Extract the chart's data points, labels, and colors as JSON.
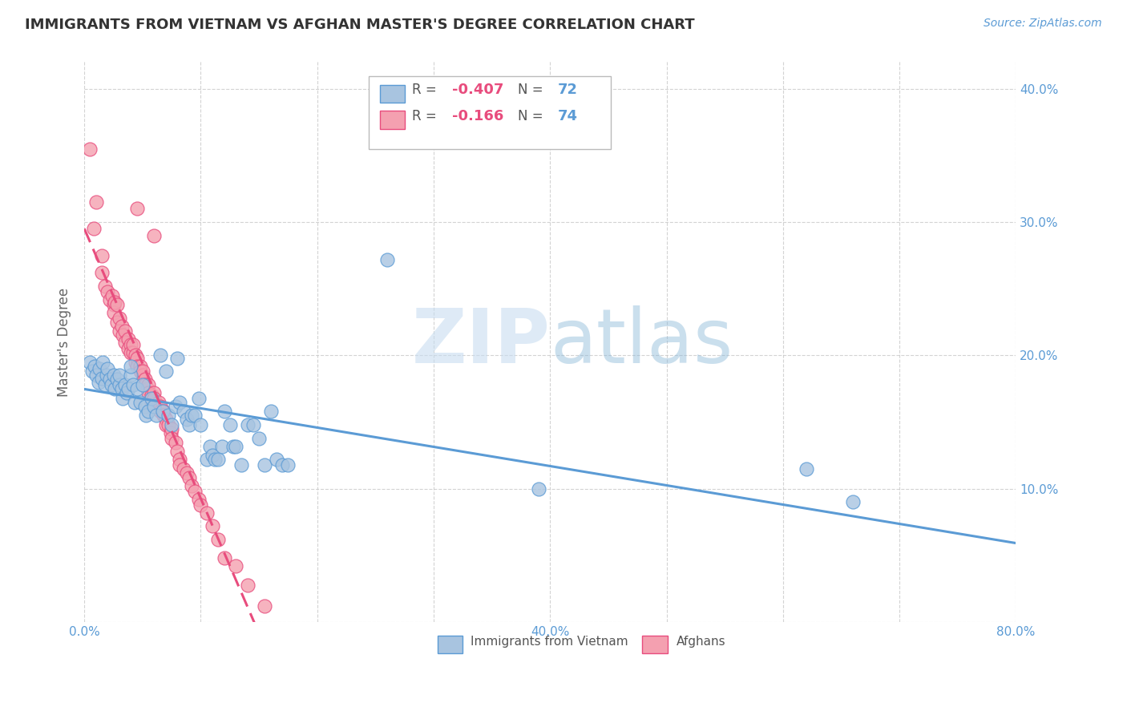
{
  "title": "IMMIGRANTS FROM VIETNAM VS AFGHAN MASTER'S DEGREE CORRELATION CHART",
  "source": "Source: ZipAtlas.com",
  "ylabel": "Master's Degree",
  "watermark": "ZIPatlas",
  "legend_vietnam_R": "-0.407",
  "legend_vietnam_N": "72",
  "legend_afghan_R": "-0.166",
  "legend_afghan_N": "74",
  "xmin": 0.0,
  "xmax": 0.8,
  "ymin": 0.0,
  "ymax": 0.42,
  "right_ytick_labels": [
    "40.0%",
    "30.0%",
    "20.0%",
    "10.0%"
  ],
  "right_ytick_values": [
    0.4,
    0.3,
    0.2,
    0.1
  ],
  "vietnam_scatter": [
    [
      0.005,
      0.195
    ],
    [
      0.007,
      0.188
    ],
    [
      0.009,
      0.192
    ],
    [
      0.01,
      0.185
    ],
    [
      0.012,
      0.18
    ],
    [
      0.013,
      0.19
    ],
    [
      0.015,
      0.183
    ],
    [
      0.016,
      0.195
    ],
    [
      0.018,
      0.178
    ],
    [
      0.019,
      0.185
    ],
    [
      0.02,
      0.19
    ],
    [
      0.022,
      0.182
    ],
    [
      0.023,
      0.178
    ],
    [
      0.025,
      0.185
    ],
    [
      0.026,
      0.175
    ],
    [
      0.028,
      0.182
    ],
    [
      0.03,
      0.178
    ],
    [
      0.03,
      0.185
    ],
    [
      0.032,
      0.175
    ],
    [
      0.033,
      0.168
    ],
    [
      0.035,
      0.178
    ],
    [
      0.036,
      0.172
    ],
    [
      0.038,
      0.175
    ],
    [
      0.04,
      0.185
    ],
    [
      0.04,
      0.192
    ],
    [
      0.042,
      0.178
    ],
    [
      0.043,
      0.165
    ],
    [
      0.045,
      0.175
    ],
    [
      0.048,
      0.165
    ],
    [
      0.05,
      0.178
    ],
    [
      0.052,
      0.162
    ],
    [
      0.053,
      0.155
    ],
    [
      0.055,
      0.158
    ],
    [
      0.058,
      0.168
    ],
    [
      0.06,
      0.162
    ],
    [
      0.062,
      0.155
    ],
    [
      0.065,
      0.2
    ],
    [
      0.067,
      0.158
    ],
    [
      0.07,
      0.188
    ],
    [
      0.072,
      0.155
    ],
    [
      0.075,
      0.148
    ],
    [
      0.078,
      0.162
    ],
    [
      0.08,
      0.198
    ],
    [
      0.082,
      0.165
    ],
    [
      0.085,
      0.158
    ],
    [
      0.088,
      0.152
    ],
    [
      0.09,
      0.148
    ],
    [
      0.092,
      0.155
    ],
    [
      0.095,
      0.155
    ],
    [
      0.098,
      0.168
    ],
    [
      0.1,
      0.148
    ],
    [
      0.105,
      0.122
    ],
    [
      0.108,
      0.132
    ],
    [
      0.11,
      0.125
    ],
    [
      0.112,
      0.122
    ],
    [
      0.115,
      0.122
    ],
    [
      0.118,
      0.132
    ],
    [
      0.12,
      0.158
    ],
    [
      0.125,
      0.148
    ],
    [
      0.128,
      0.132
    ],
    [
      0.13,
      0.132
    ],
    [
      0.135,
      0.118
    ],
    [
      0.14,
      0.148
    ],
    [
      0.145,
      0.148
    ],
    [
      0.15,
      0.138
    ],
    [
      0.155,
      0.118
    ],
    [
      0.16,
      0.158
    ],
    [
      0.165,
      0.122
    ],
    [
      0.17,
      0.118
    ],
    [
      0.175,
      0.118
    ],
    [
      0.26,
      0.272
    ],
    [
      0.39,
      0.1
    ],
    [
      0.62,
      0.115
    ],
    [
      0.66,
      0.09
    ]
  ],
  "afghan_scatter": [
    [
      0.005,
      0.355
    ],
    [
      0.008,
      0.295
    ],
    [
      0.01,
      0.315
    ],
    [
      0.015,
      0.275
    ],
    [
      0.015,
      0.262
    ],
    [
      0.018,
      0.252
    ],
    [
      0.02,
      0.248
    ],
    [
      0.022,
      0.242
    ],
    [
      0.024,
      0.245
    ],
    [
      0.025,
      0.238
    ],
    [
      0.025,
      0.232
    ],
    [
      0.026,
      0.24
    ],
    [
      0.028,
      0.238
    ],
    [
      0.028,
      0.225
    ],
    [
      0.03,
      0.228
    ],
    [
      0.03,
      0.218
    ],
    [
      0.032,
      0.222
    ],
    [
      0.033,
      0.215
    ],
    [
      0.035,
      0.218
    ],
    [
      0.035,
      0.21
    ],
    [
      0.038,
      0.212
    ],
    [
      0.038,
      0.205
    ],
    [
      0.04,
      0.208
    ],
    [
      0.04,
      0.202
    ],
    [
      0.042,
      0.202
    ],
    [
      0.042,
      0.208
    ],
    [
      0.044,
      0.195
    ],
    [
      0.044,
      0.2
    ],
    [
      0.045,
      0.198
    ],
    [
      0.045,
      0.192
    ],
    [
      0.045,
      0.31
    ],
    [
      0.048,
      0.192
    ],
    [
      0.048,
      0.188
    ],
    [
      0.05,
      0.185
    ],
    [
      0.05,
      0.188
    ],
    [
      0.052,
      0.182
    ],
    [
      0.052,
      0.178
    ],
    [
      0.054,
      0.175
    ],
    [
      0.055,
      0.178
    ],
    [
      0.055,
      0.172
    ],
    [
      0.058,
      0.17
    ],
    [
      0.058,
      0.165
    ],
    [
      0.06,
      0.172
    ],
    [
      0.06,
      0.168
    ],
    [
      0.06,
      0.29
    ],
    [
      0.062,
      0.162
    ],
    [
      0.064,
      0.165
    ],
    [
      0.065,
      0.162
    ],
    [
      0.065,
      0.158
    ],
    [
      0.068,
      0.158
    ],
    [
      0.068,
      0.155
    ],
    [
      0.07,
      0.152
    ],
    [
      0.07,
      0.148
    ],
    [
      0.072,
      0.148
    ],
    [
      0.074,
      0.142
    ],
    [
      0.075,
      0.145
    ],
    [
      0.075,
      0.138
    ],
    [
      0.078,
      0.135
    ],
    [
      0.08,
      0.128
    ],
    [
      0.082,
      0.122
    ],
    [
      0.082,
      0.118
    ],
    [
      0.085,
      0.115
    ],
    [
      0.088,
      0.112
    ],
    [
      0.09,
      0.108
    ],
    [
      0.092,
      0.102
    ],
    [
      0.095,
      0.098
    ],
    [
      0.098,
      0.092
    ],
    [
      0.1,
      0.088
    ],
    [
      0.105,
      0.082
    ],
    [
      0.11,
      0.072
    ],
    [
      0.115,
      0.062
    ],
    [
      0.12,
      0.048
    ],
    [
      0.13,
      0.042
    ],
    [
      0.14,
      0.028
    ],
    [
      0.155,
      0.012
    ]
  ],
  "vietnam_line_color": "#5b9bd5",
  "afghan_line_color": "#e84c7d",
  "vietnam_scatter_color": "#a8c4e0",
  "afghan_scatter_color": "#f4a0b0",
  "background_color": "#ffffff",
  "grid_color": "#c8c8c8",
  "title_color": "#333333",
  "axis_color": "#5b9bd5",
  "watermark_color": "#d0e4f4",
  "r_text_color": "#e84c7d",
  "n_text_color": "#5b9bd5"
}
